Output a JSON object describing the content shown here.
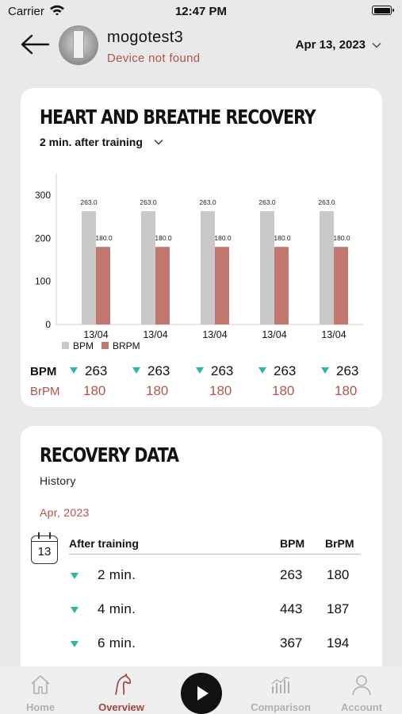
{
  "status_bar": {
    "carrier": "Carrier",
    "time": "12:47 PM"
  },
  "header": {
    "user_name": "mogotest3",
    "device_status": "Device not found",
    "date": "Apr 13, 2023"
  },
  "recovery_card": {
    "title": "HEART AND BREATHE RECOVERY",
    "period": "2 min. after training",
    "row_labels": {
      "bpm": "BPM",
      "brpm": "BrPM"
    },
    "bpm_values": [
      "263",
      "263",
      "263",
      "263",
      "263"
    ],
    "brpm_values": [
      "180",
      "180",
      "180",
      "180",
      "180"
    ]
  },
  "chart_data": {
    "type": "bar",
    "categories": [
      "13/04",
      "13/04",
      "13/04",
      "13/04",
      "13/04"
    ],
    "series": [
      {
        "name": "BPM",
        "values": [
          263.0,
          263.0,
          263.0,
          263.0,
          263.0
        ],
        "color": "#c8c8c8"
      },
      {
        "name": "BRPM",
        "values": [
          180.0,
          180.0,
          180.0,
          180.0,
          180.0
        ],
        "color": "#c1766e"
      }
    ],
    "ylim": [
      0,
      300
    ],
    "yticks": [
      0,
      100,
      200,
      300
    ],
    "legend": "bottom-left",
    "data_labels": true,
    "grid": false
  },
  "recovery_data_card": {
    "title": "RECOVERY DATA",
    "subtitle": "History",
    "month": "Apr, 2023",
    "calendar_day": "13",
    "columns": {
      "after": "After training",
      "bpm": "BPM",
      "brpm": "BrPM"
    },
    "rows": [
      {
        "label": "2 min.",
        "bpm": "263",
        "brpm": "180"
      },
      {
        "label": "4 min.",
        "bpm": "443",
        "brpm": "187"
      },
      {
        "label": "6 min.",
        "bpm": "367",
        "brpm": "194"
      }
    ]
  },
  "tab_bar": {
    "tabs": [
      {
        "label": "Home",
        "icon": "home-icon"
      },
      {
        "label": "Overview",
        "icon": "horse-icon"
      },
      {
        "label": "Comparison",
        "icon": "bar-chart-icon"
      },
      {
        "label": "Account",
        "icon": "person-icon"
      }
    ],
    "play_icon": "play-icon"
  },
  "colors": {
    "accent": "#a0423c",
    "teal": "#2ab7a0",
    "bpm_bar": "#c8c8c8",
    "brpm_bar": "#c1766e"
  }
}
